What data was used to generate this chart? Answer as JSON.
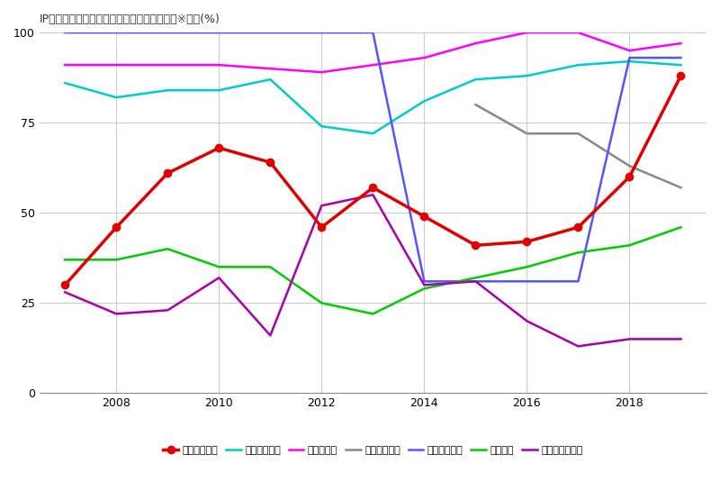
{
  "title": "IP別売上高の中でトイホビーが占める割合　※単位(%)",
  "xlim": [
    2006.5,
    2019.5
  ],
  "ylim": [
    0,
    100
  ],
  "yticks": [
    0,
    25,
    50,
    75,
    100
  ],
  "xticks": [
    2008,
    2010,
    2012,
    2014,
    2016,
    2018
  ],
  "series": {
    "スーパー戦隊": {
      "color": "#e00000",
      "linewidth": 2.5,
      "marker": "o",
      "markersize": 6,
      "x": [
        2007,
        2008,
        2009,
        2010,
        2011,
        2012,
        2013,
        2014,
        2015,
        2016,
        2017,
        2018,
        2019
      ],
      "y": [
        30,
        46,
        61,
        68,
        64,
        46,
        57,
        49,
        41,
        42,
        46,
        60,
        88
      ]
    },
    "仮面ライダー": {
      "color": "#00cccc",
      "linewidth": 1.8,
      "marker": null,
      "markersize": 0,
      "x": [
        2007,
        2008,
        2009,
        2010,
        2011,
        2012,
        2013,
        2014,
        2015,
        2016,
        2017,
        2018,
        2019
      ],
      "y": [
        86,
        82,
        84,
        84,
        87,
        74,
        72,
        81,
        87,
        88,
        91,
        92,
        91
      ]
    },
    "プリキュア": {
      "color": "#ff00ff",
      "linewidth": 1.8,
      "marker": null,
      "markersize": 0,
      "x": [
        2007,
        2008,
        2009,
        2010,
        2011,
        2012,
        2013,
        2014,
        2015,
        2016,
        2017,
        2018,
        2019
      ],
      "y": [
        91,
        91,
        91,
        91,
        90,
        89,
        91,
        93,
        97,
        100,
        100,
        95,
        97
      ]
    },
    "ウルトラマン": {
      "color": "#888888",
      "linewidth": 1.8,
      "marker": null,
      "markersize": 0,
      "x": [
        2015,
        2016,
        2017,
        2018,
        2019
      ],
      "y": [
        80,
        72,
        72,
        63,
        57
      ]
    },
    "アンパンマン": {
      "color": "#5555ff",
      "linewidth": 1.8,
      "marker": null,
      "markersize": 0,
      "x": [
        2007,
        2008,
        2009,
        2010,
        2011,
        2012,
        2013,
        2014,
        2015,
        2016,
        2017,
        2018,
        2019
      ],
      "y": [
        100,
        100,
        100,
        100,
        100,
        100,
        100,
        31,
        31,
        31,
        31,
        93,
        93
      ]
    },
    "ガンダム": {
      "color": "#00cc00",
      "linewidth": 1.8,
      "marker": null,
      "markersize": 0,
      "x": [
        2007,
        2008,
        2009,
        2010,
        2011,
        2012,
        2013,
        2014,
        2015,
        2016,
        2017,
        2018,
        2019
      ],
      "y": [
        37,
        37,
        40,
        35,
        35,
        25,
        22,
        29,
        32,
        35,
        39,
        41,
        46
      ]
    },
    "ドラゴンボール": {
      "color": "#aa00aa",
      "linewidth": 1.8,
      "marker": null,
      "markersize": 0,
      "x": [
        2007,
        2008,
        2009,
        2010,
        2011,
        2012,
        2013,
        2014,
        2015,
        2016,
        2017,
        2018,
        2019
      ],
      "y": [
        28,
        22,
        23,
        32,
        16,
        52,
        55,
        30,
        31,
        20,
        13,
        15,
        15
      ]
    }
  },
  "legend_order": [
    "スーパー戦隊",
    "仮面ライダー",
    "プリキュア",
    "ウルトラマン",
    "アンパンマン",
    "ガンダム",
    "ドラゴンボール"
  ],
  "background_color": "#ffffff",
  "grid_color": "#cccccc"
}
